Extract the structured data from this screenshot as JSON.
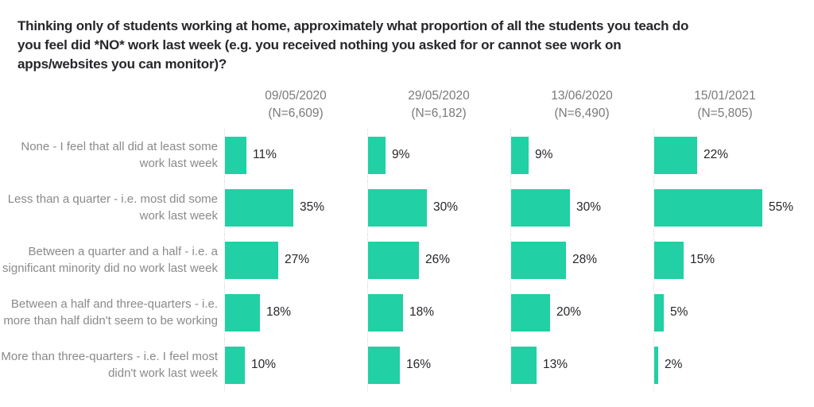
{
  "chart_data": {
    "type": "bar",
    "orientation": "horizontal",
    "title": "Thinking only of students working at home, approximately what proportion of all the students you teach do you feel did *NO* work last week (e.g. you received nothing you asked for or cannot see work on apps/websites you can monitor)?",
    "title_lines": [
      "Thinking only of students working at home, approximately what proportion of all the students you teach do",
      "you feel did *NO* work last week (e.g. you received nothing you asked for or cannot see work on",
      "apps/websites you can monitor)?"
    ],
    "categories": [
      "None - I feel that all did at least some work last week",
      "Less than a quarter - i.e. most did some work last week",
      "Between a quarter and a half - i.e. a significant minority did no work last week",
      "Between a half and three-quarters - i.e. more than half didn't seem to be working",
      "More than three-quarters - i.e. I feel most didn't work last week"
    ],
    "series": [
      {
        "name": "09/05/2020",
        "sample_label": "(N=6,609)",
        "values": [
          11,
          35,
          27,
          18,
          10
        ]
      },
      {
        "name": "29/05/2020",
        "sample_label": "(N=6,182)",
        "values": [
          9,
          30,
          26,
          18,
          16
        ]
      },
      {
        "name": "13/06/2020",
        "sample_label": "(N=6,490)",
        "values": [
          9,
          30,
          28,
          20,
          13
        ]
      },
      {
        "name": "15/01/2021",
        "sample_label": "(N=5,805)",
        "values": [
          22,
          55,
          15,
          5,
          2
        ]
      }
    ],
    "value_suffix": "%",
    "xlim": [
      0,
      60
    ],
    "legend": "none",
    "grid": "dotted column baselines",
    "bar_color": "#21d0a4",
    "axis_line_color": "#dcdcdc",
    "title_color": "#26262b",
    "label_color": "#8a8a8a",
    "header_color": "#7a7a7a"
  }
}
